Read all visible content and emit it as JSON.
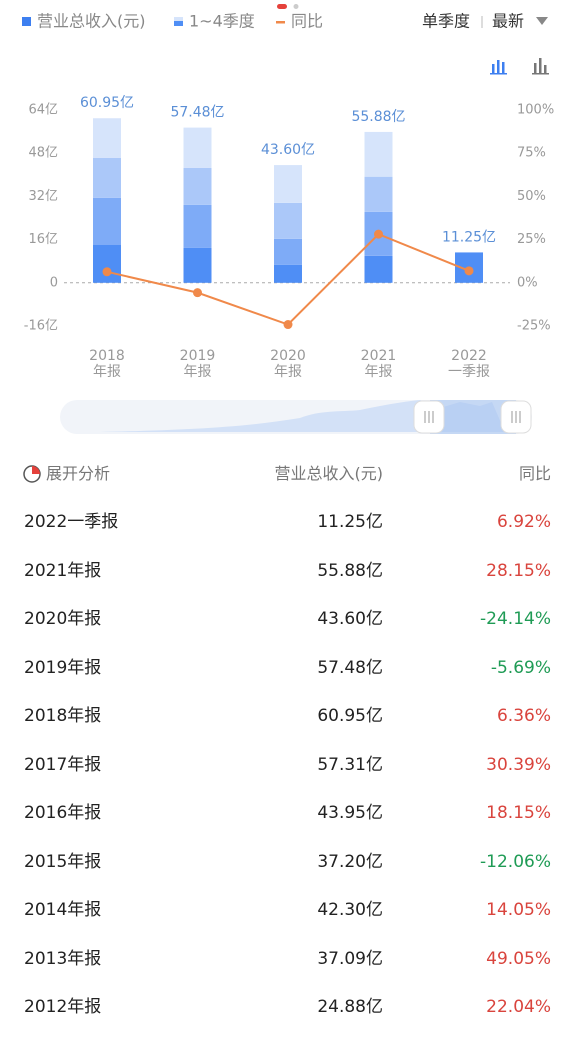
{
  "chart_data": {
    "type": "stacked-bar-line",
    "categories": [
      [
        "2018",
        "年报"
      ],
      [
        "2019",
        "年报"
      ],
      [
        "2020",
        "年报"
      ],
      [
        "2021",
        "年报"
      ],
      [
        "2022",
        "一季报"
      ]
    ],
    "series": [
      {
        "name": "营业总收入(元)",
        "color": "#3d7ff0",
        "values": [
          60.95,
          57.48,
          43.6,
          55.88,
          11.25
        ],
        "value_labels": [
          "60.95亿",
          "57.48亿",
          "43.60亿",
          "55.88亿",
          "11.25亿"
        ]
      },
      {
        "name": "1~4季度",
        "colors": [
          "#4f8ef5",
          "#7eabf7",
          "#abc8f9",
          "#d6e4fb"
        ],
        "values": [
          [
            14,
            17.5,
            14.8,
            14.65
          ],
          [
            13,
            15.9,
            13.7,
            14.88
          ],
          [
            6.7,
            9.6,
            13.3,
            14
          ],
          [
            10,
            16.3,
            13,
            16.58
          ],
          [
            11.25,
            null,
            null,
            null
          ]
        ]
      },
      {
        "name": "同比",
        "color": "#f0894a",
        "axis": "y2",
        "values": [
          6.36,
          -5.69,
          -24.14,
          28.15,
          6.92
        ]
      }
    ],
    "ylim": [
      -16,
      64
    ],
    "yticks": [
      {
        "value": 64,
        "label": "64亿"
      },
      {
        "value": 48,
        "label": "48亿"
      },
      {
        "value": 32,
        "label": "32亿"
      },
      {
        "value": 16,
        "label": "16亿"
      },
      0,
      {
        "value": -16,
        "label": "-16亿"
      }
    ],
    "y2lim": [
      -25,
      100
    ],
    "y2ticks": [
      {
        "value": 100,
        "label": "100%"
      },
      {
        "value": 75,
        "label": "75%"
      },
      {
        "value": 50,
        "label": "50%"
      },
      {
        "value": 25,
        "label": "25%"
      },
      {
        "value": 0,
        "label": "0%"
      },
      {
        "value": -25,
        "label": "-25%"
      }
    ]
  },
  "controls": {
    "period": "单季度",
    "range": "最新"
  },
  "table": {
    "header": [
      "展开分析",
      "营业总收入(元)",
      "同比"
    ],
    "rows": [
      [
        "2022一季报",
        "11.25亿",
        "6.92%"
      ],
      [
        "2021年报",
        "55.88亿",
        "28.15%"
      ],
      [
        "2020年报",
        "43.60亿",
        "-24.14%"
      ],
      [
        "2019年报",
        "57.48亿",
        "-5.69%"
      ],
      [
        "2018年报",
        "60.95亿",
        "6.36%"
      ],
      [
        "2017年报",
        "57.31亿",
        "30.39%"
      ],
      [
        "2016年报",
        "43.95亿",
        "18.15%"
      ],
      [
        "2015年报",
        "37.20亿",
        "-12.06%"
      ],
      [
        "2014年报",
        "42.30亿",
        "14.05%"
      ],
      [
        "2013年报",
        "37.09亿",
        "49.05%"
      ],
      [
        "2012年报",
        "24.88亿",
        "22.04%"
      ]
    ]
  }
}
